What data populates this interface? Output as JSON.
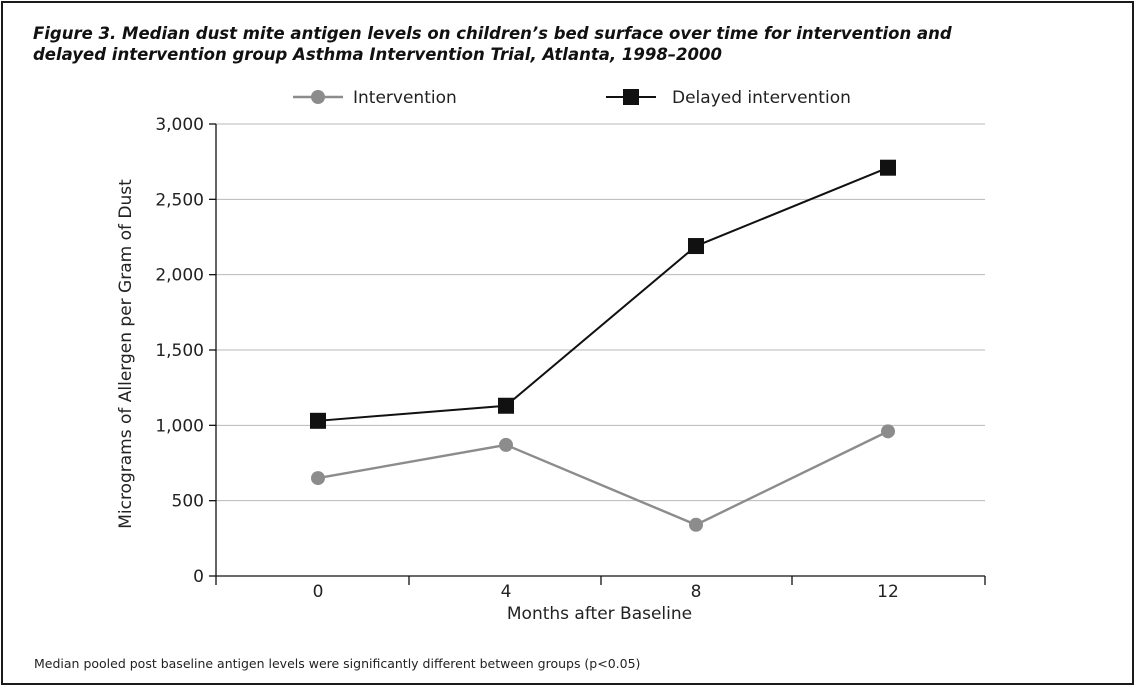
{
  "chart_data": {
    "type": "line",
    "title_lines": [
      "Figure 3. Median dust mite antigen levels on children’s bed surface over time for intervention and",
      "delayed intervention group Asthma Intervention Trial, Atlanta, 1998–2000"
    ],
    "xlabel": "Months after Baseline",
    "ylabel": "Micrograms of Allergen per Gram of Dust",
    "x": [
      0,
      4,
      8,
      12
    ],
    "x_tick_labels": [
      "0",
      "4",
      "8",
      "12"
    ],
    "ylim": [
      0,
      3000
    ],
    "y_ticks": [
      0,
      500,
      1000,
      1500,
      2000,
      2500,
      3000
    ],
    "y_tick_labels": [
      "0",
      "500",
      "1,000",
      "1,500",
      "2,000",
      "2,500",
      "3,000"
    ],
    "grid": "horizontal",
    "legend_placement": "top",
    "series": [
      {
        "name": "Intervention",
        "values": [
          650,
          870,
          340,
          960
        ],
        "color": "#8c8c8c",
        "marker": "circle"
      },
      {
        "name": "Delayed intervention",
        "values": [
          1030,
          1130,
          2190,
          2710
        ],
        "color": "#111111",
        "marker": "square"
      }
    ],
    "footnote": "Median pooled post baseline antigen levels were significantly different between groups (p<0.05)"
  }
}
